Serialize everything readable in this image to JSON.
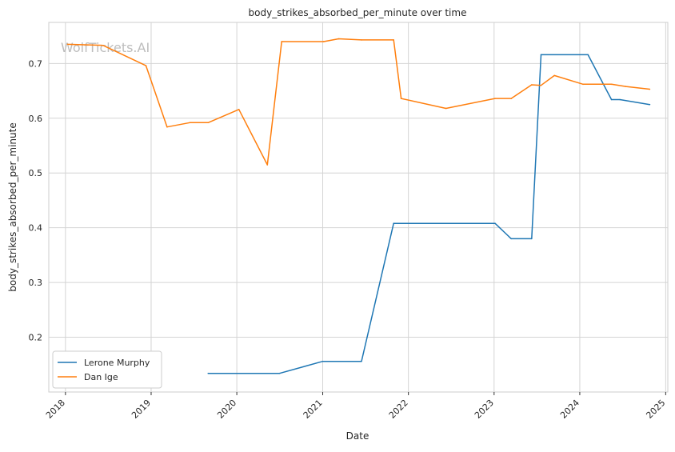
{
  "chart_data": {
    "type": "line",
    "title": "body_strikes_absorbed_per_minute over time",
    "xlabel": "Date",
    "ylabel": "body_strikes_absorbed_per_minute",
    "watermark": "WolfTickets.AI",
    "xlim": [
      "2017-10-22",
      "2025-01-10"
    ],
    "ylim": [
      0.1,
      0.775
    ],
    "x_ticks": [
      "2018",
      "2019",
      "2020",
      "2021",
      "2022",
      "2023",
      "2024",
      "2025"
    ],
    "y_ticks": [
      0.2,
      0.3,
      0.4,
      0.5,
      0.6,
      0.7
    ],
    "y_tick_labels": [
      "0.2",
      "0.3",
      "0.4",
      "0.5",
      "0.6",
      "0.7"
    ],
    "grid": true,
    "legend_position": "lower-left",
    "series": [
      {
        "name": "Lerone Murphy",
        "color": "#1f77b4",
        "points": [
          {
            "x": "2019-09-01",
            "y": 0.134
          },
          {
            "x": "2020-07-01",
            "y": 0.134
          },
          {
            "x": "2021-01-01",
            "y": 0.156
          },
          {
            "x": "2021-06-15",
            "y": 0.156
          },
          {
            "x": "2021-10-30",
            "y": 0.408
          },
          {
            "x": "2023-01-05",
            "y": 0.408
          },
          {
            "x": "2023-03-15",
            "y": 0.38
          },
          {
            "x": "2023-06-10",
            "y": 0.38
          },
          {
            "x": "2023-07-20",
            "y": 0.716
          },
          {
            "x": "2024-02-05",
            "y": 0.716
          },
          {
            "x": "2024-05-15",
            "y": 0.634
          },
          {
            "x": "2024-06-20",
            "y": 0.634
          },
          {
            "x": "2024-10-25",
            "y": 0.625
          }
        ]
      },
      {
        "name": "Dan Ige",
        "color": "#ff7f0e",
        "points": [
          {
            "x": "2018-01-10",
            "y": 0.735
          },
          {
            "x": "2018-06-10",
            "y": 0.733
          },
          {
            "x": "2018-12-10",
            "y": 0.696
          },
          {
            "x": "2019-03-10",
            "y": 0.584
          },
          {
            "x": "2019-06-15",
            "y": 0.592
          },
          {
            "x": "2019-09-01",
            "y": 0.592
          },
          {
            "x": "2020-01-10",
            "y": 0.616
          },
          {
            "x": "2020-05-10",
            "y": 0.515
          },
          {
            "x": "2020-07-10",
            "y": 0.74
          },
          {
            "x": "2021-01-05",
            "y": 0.74
          },
          {
            "x": "2021-03-10",
            "y": 0.745
          },
          {
            "x": "2021-06-15",
            "y": 0.743
          },
          {
            "x": "2021-10-30",
            "y": 0.743
          },
          {
            "x": "2021-12-01",
            "y": 0.636
          },
          {
            "x": "2022-06-10",
            "y": 0.618
          },
          {
            "x": "2023-01-05",
            "y": 0.636
          },
          {
            "x": "2023-03-15",
            "y": 0.636
          },
          {
            "x": "2023-06-10",
            "y": 0.661
          },
          {
            "x": "2023-07-20",
            "y": 0.66
          },
          {
            "x": "2023-09-15",
            "y": 0.678
          },
          {
            "x": "2024-01-15",
            "y": 0.662
          },
          {
            "x": "2024-05-15",
            "y": 0.662
          },
          {
            "x": "2024-07-15",
            "y": 0.658
          },
          {
            "x": "2024-10-25",
            "y": 0.653
          }
        ]
      }
    ]
  }
}
